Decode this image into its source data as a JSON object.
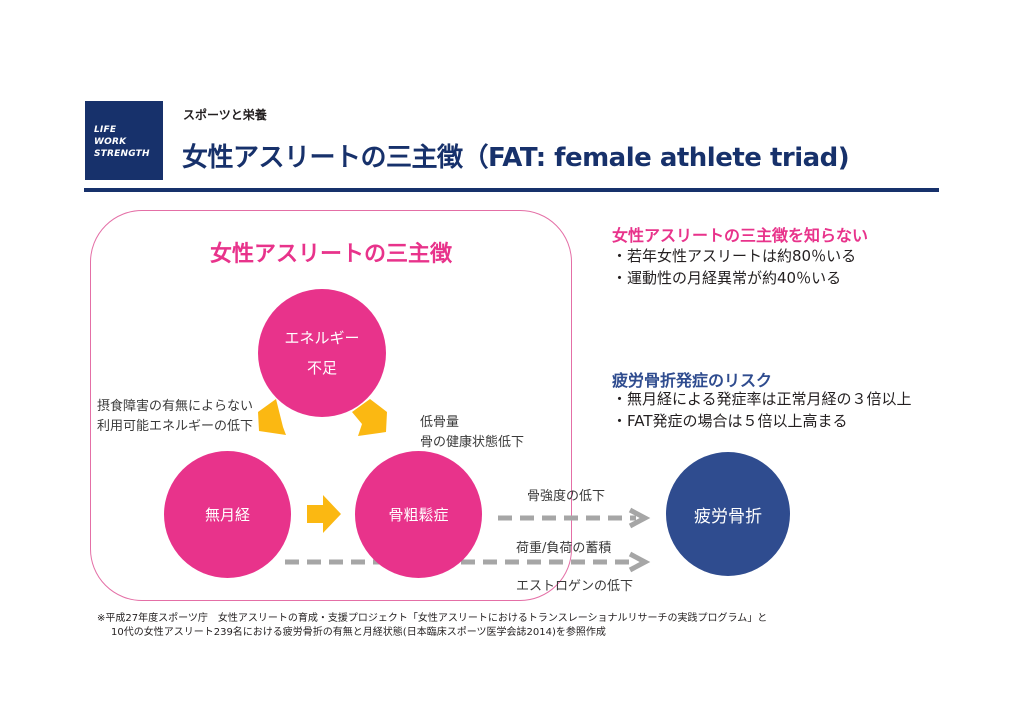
{
  "logo": {
    "lines": [
      "LIFE",
      "WORK",
      "STRENGTH"
    ]
  },
  "header": {
    "category": "スポーツと栄養",
    "title": "女性アスリートの三主徴（FAT: female athlete triad)"
  },
  "diagram": {
    "title": "女性アスリートの三主徴",
    "nodes": {
      "energy_line1": "エネルギー",
      "energy_line2": "不足",
      "amenorrhea": "無月経",
      "osteoporosis": "骨粗鬆症",
      "stress_fracture": "疲労骨折"
    },
    "notes": {
      "left_line1": "摂食障害の有無によらない",
      "left_line2": "利用可能エネルギーの低下",
      "right_line1": "低骨量",
      "right_line2": "骨の健康状態低下",
      "bone_strength": "骨強度の低下",
      "load": "荷重/負荷の蓄積",
      "estrogen": "エストロゲンの低下"
    },
    "colors": {
      "pink": "#e8338b",
      "navy": "#2f4c8f",
      "arrow": "#fbb812",
      "dash": "#a6a6a6"
    }
  },
  "side": {
    "unaware": {
      "heading": "女性アスリートの三主徴を知らない",
      "items": [
        "・若年女性アスリートは約80％いる",
        "・運動性の月経異常が約40％いる"
      ]
    },
    "risk": {
      "heading": "疲労骨折発症のリスク",
      "items": [
        "・無月経による発症率は正常月経の３倍以上",
        "・FAT発症の場合は５倍以上高まる"
      ]
    }
  },
  "footer": {
    "line1": "※平成27年度スポーツ庁　女性アスリートの育成・支援プロジェクト「女性アスリートにおけるトランスレーショナルリサーチの実践プログラム」と",
    "line2": "10代の女性アスリート239名における疲労骨折の有無と月経状態(日本臨床スポーツ医学会誌2014)を参照作成"
  }
}
